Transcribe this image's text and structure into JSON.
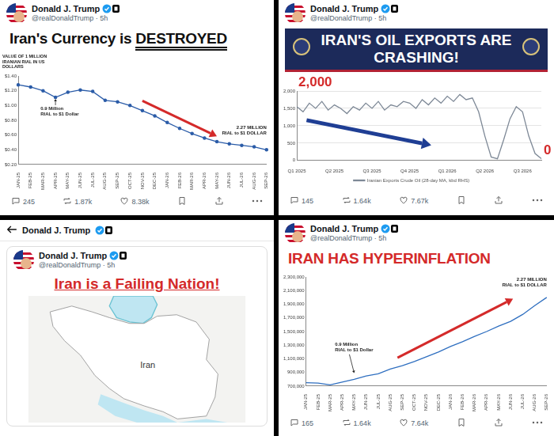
{
  "posts": [
    {
      "author": "Donald J. Trump",
      "meta": "@realDonaldTrump · 5h",
      "replies": "245",
      "reposts": "1.87k",
      "likes": "8.38k"
    },
    {
      "author": "Donald J. Trump",
      "meta": "@realDonaldTrump · 5h",
      "replies": "145",
      "reposts": "1.64k",
      "likes": "7.67k"
    },
    {
      "nav_title": "Donald J. Trump",
      "author": "Donald J. Trump",
      "meta": "@realDonaldTrump · 5h",
      "title": "Iran is a Failing Nation!",
      "map_label": "Iran"
    },
    {
      "author": "Donald J. Trump",
      "meta": "@realDonaldTrump · 5h",
      "replies": "165",
      "reposts": "1.64k",
      "likes": "7.64k"
    }
  ],
  "chart_data": [
    {
      "type": "line",
      "title": "Iran's Currency is DESTROYED",
      "ylabel": "VALUE OF 1 MILLION IRANIAN RIAL IN US DOLLARS",
      "categories": [
        "JAN-25",
        "FEB-25",
        "MAR-25",
        "APR-25",
        "MAY-25",
        "JUN-25",
        "JUL-25",
        "AUG-25",
        "SEP-25",
        "OCT-25",
        "NOV-25",
        "DEC-25",
        "JAN-26",
        "FEB-26",
        "MAR-26",
        "APR-26",
        "MAY-26",
        "JUN-26",
        "JUL-26",
        "AUG-26",
        "SEP-26"
      ],
      "values": [
        1.28,
        1.25,
        1.2,
        1.11,
        1.18,
        1.21,
        1.19,
        1.07,
        1.05,
        1.0,
        0.93,
        0.86,
        0.77,
        0.69,
        0.62,
        0.56,
        0.51,
        0.48,
        0.46,
        0.44,
        0.4
      ],
      "color": "#2b5ca8",
      "marker": "circle",
      "ylim": [
        0.2,
        1.4
      ],
      "yticks": [
        {
          "value": 0.2,
          "label": "$0.20"
        },
        {
          "value": 0.4,
          "label": "$0.40"
        },
        {
          "value": 0.6,
          "label": "$0.60"
        },
        {
          "value": 0.8,
          "label": "$0.80"
        },
        {
          "value": 1.0,
          "label": "$1.00"
        },
        {
          "value": 1.2,
          "label": "$1.20"
        },
        {
          "value": 1.4,
          "label": "$1.40"
        }
      ],
      "grid": false,
      "annotations": [
        "0.9 Million RIAL to $1 Dollar",
        "2.27 MILLION RIAL to $1 DOLLAR"
      ]
    },
    {
      "type": "line",
      "title": "IRAN'S OIL EXPORTS ARE CRASHING!",
      "categories": [
        "Q1 2025",
        null,
        null,
        null,
        null,
        null,
        "Q2 2025",
        null,
        null,
        null,
        null,
        null,
        "Q3 2025",
        null,
        null,
        null,
        null,
        null,
        "Q4 2025",
        null,
        null,
        null,
        null,
        null,
        "Q1 2026",
        null,
        null,
        null,
        null,
        null,
        "Q2 2026",
        null,
        null,
        null,
        null,
        null,
        "Q3 2026",
        null,
        null,
        null
      ],
      "series": [
        {
          "name": "Iranian Exports Crude Oil (28-day MA, kbd RHS)",
          "color": "#7d8896",
          "values": [
            1550,
            1400,
            1650,
            1500,
            1700,
            1450,
            1600,
            1500,
            1350,
            1550,
            1450,
            1650,
            1500,
            1700,
            1450,
            1600,
            1550,
            1700,
            1650,
            1500,
            1750,
            1600,
            1800,
            1650,
            1850,
            1700,
            1900,
            1750,
            1800,
            1400,
            700,
            100,
            50,
            600,
            1200,
            1550,
            1400,
            700,
            200,
            50
          ]
        }
      ],
      "legend": "bottom",
      "ylim": [
        0,
        2000
      ],
      "yticks": [
        0,
        500,
        {
          "value": 1000,
          "label": "1,000"
        },
        {
          "value": 1500,
          "label": "1,500"
        },
        {
          "value": 2000,
          "label": "2,000"
        }
      ],
      "grid": true,
      "annotations": [
        "2,000",
        "0"
      ]
    },
    {
      "type": "line",
      "title": "IRAN HAS HYPERINFLATION",
      "categories": [
        "JAN-25",
        "FEB-25",
        "MAR-25",
        "APR-25",
        "MAY-25",
        "JUN-25",
        "JUL-25",
        "AUG-25",
        "SEP-25",
        "OCT-25",
        "NOV-25",
        "DEC-25",
        "JAN-26",
        "FEB-26",
        "MAR-26",
        "APR-26",
        "MAY-26",
        "JUN-26",
        "JUL-26",
        "AUG-26",
        "SEP-26"
      ],
      "values": [
        750000,
        745000,
        720000,
        760000,
        800000,
        850000,
        880000,
        950000,
        1000000,
        1060000,
        1130000,
        1200000,
        1280000,
        1350000,
        1430000,
        1500000,
        1580000,
        1650000,
        1750000,
        1880000,
        2000000
      ],
      "color": "#2f6fc0",
      "ylim": [
        700000,
        2300000
      ],
      "yticks": [
        {
          "value": 700000,
          "label": "700,000"
        },
        {
          "value": 900000,
          "label": "900,000"
        },
        {
          "value": 1100000,
          "label": "1,100,000"
        },
        {
          "value": 1300000,
          "label": "1,300,000"
        },
        {
          "value": 1500000,
          "label": "1,500,000"
        },
        {
          "value": 1700000,
          "label": "1,700,000"
        },
        {
          "value": 1900000,
          "label": "1,900,000"
        },
        {
          "value": 2100000,
          "label": "2,100,000"
        },
        {
          "value": 2300000,
          "label": "2,300,000"
        }
      ],
      "grid": false,
      "annotations": [
        "0.9 Million RIAL to $1 Dollar",
        "2.27 MILLION RIAL to $1 DOLLAR"
      ]
    }
  ]
}
